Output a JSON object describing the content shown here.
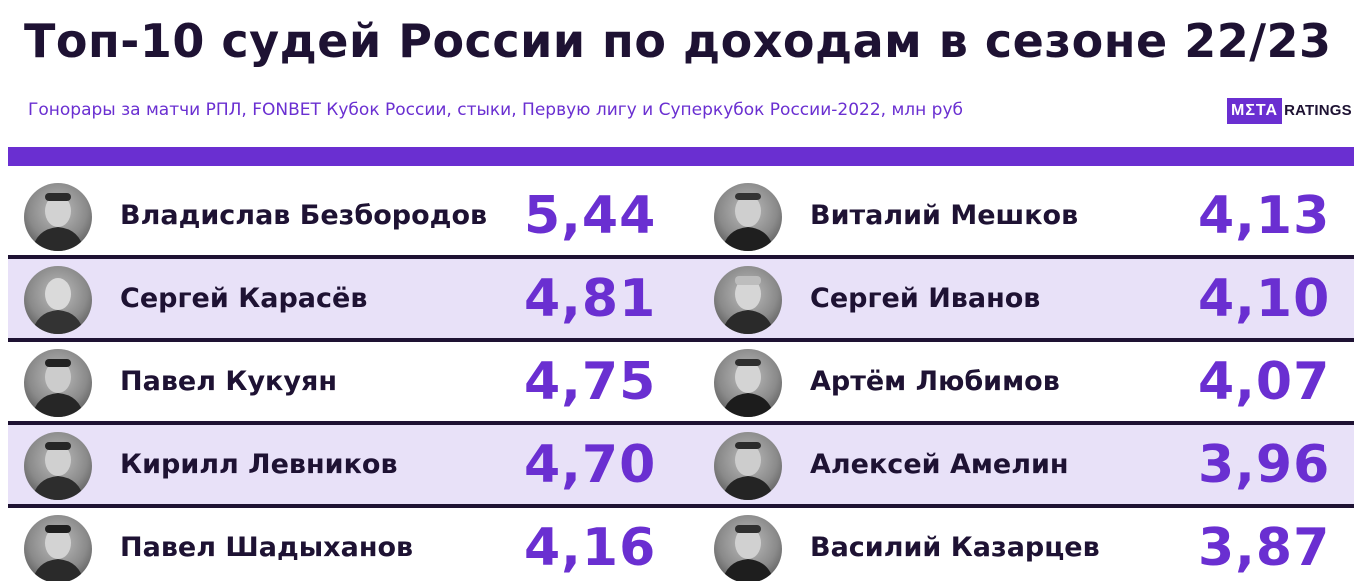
{
  "header": {
    "title": "Топ-10 судей России по доходам в сезоне 22/23",
    "subtitle": "Гонорары за матчи РПЛ, FONBET Кубок России, стыки, Первую лигу и Суперкубок России-2022, млн руб",
    "logo_meta": "MΣTA",
    "logo_ratings": "RATINGS"
  },
  "colors": {
    "accent": "#6a2fd1",
    "dark": "#1e1233",
    "row_shade": "#e8e1f8"
  },
  "left": [
    {
      "name": "Владислав Безбородов",
      "value": "5,44",
      "avatar_icon": "referee-portrait-icon"
    },
    {
      "name": "Сергей Карасёв",
      "value": "4,81",
      "avatar_icon": "referee-portrait-icon"
    },
    {
      "name": "Павел Кукуян",
      "value": "4,75",
      "avatar_icon": "referee-portrait-icon"
    },
    {
      "name": "Кирилл Левников",
      "value": "4,70",
      "avatar_icon": "referee-portrait-icon"
    },
    {
      "name": "Павел Шадыханов",
      "value": "4,16",
      "avatar_icon": "referee-portrait-icon"
    }
  ],
  "right": [
    {
      "name": "Виталий Мешков",
      "value": "4,13",
      "avatar_icon": "referee-portrait-icon"
    },
    {
      "name": "Сергей Иванов",
      "value": "4,10",
      "avatar_icon": "referee-portrait-icon"
    },
    {
      "name": "Артём Любимов",
      "value": "4,07",
      "avatar_icon": "referee-portrait-icon"
    },
    {
      "name": "Алексей Амелин",
      "value": "3,96",
      "avatar_icon": "referee-portrait-icon"
    },
    {
      "name": "Василий Казарцев",
      "value": "3,87",
      "avatar_icon": "referee-portrait-icon"
    }
  ]
}
